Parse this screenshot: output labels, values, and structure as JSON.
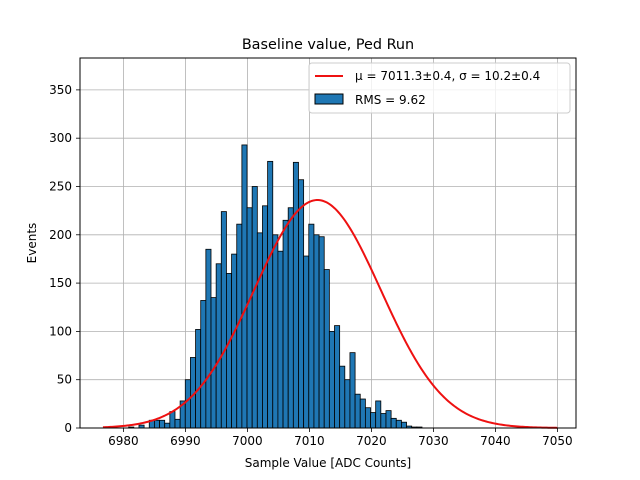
{
  "chart_data": {
    "type": "bar",
    "title": "Baseline value, Ped Run",
    "xlabel": "Sample Value [ADC Counts]",
    "ylabel": "Events",
    "xlim": [
      6973,
      7053
    ],
    "ylim": [
      0,
      383
    ],
    "grid": true,
    "legend_position": "top-right",
    "x_ticks": [
      6980,
      6990,
      7000,
      7010,
      7020,
      7030,
      7040,
      7050
    ],
    "x_tick_labels": [
      "6980",
      "6990",
      "7000",
      "7010",
      "7020",
      "7030",
      "7040",
      "7050"
    ],
    "y_ticks": [
      0,
      50,
      100,
      150,
      200,
      250,
      300,
      350
    ],
    "y_tick_labels": [
      "0",
      "50",
      "100",
      "150",
      "200",
      "250",
      "300",
      "350"
    ],
    "histogram": {
      "name": "RMS = 9.62",
      "bin_width": 0.83,
      "bin_start": 6976.7,
      "fill_color": "#1f77b4",
      "edge_color": "#000000",
      "values": [
        0,
        0,
        0,
        0,
        0,
        1,
        0,
        3,
        0,
        8,
        8,
        8,
        5,
        17,
        9,
        28,
        50,
        73,
        102,
        132,
        185,
        135,
        170,
        224,
        160,
        180,
        211,
        293,
        228,
        250,
        202,
        230,
        276,
        200,
        183,
        215,
        228,
        275,
        257,
        178,
        211,
        200,
        198,
        164,
        100,
        106,
        64,
        50,
        78,
        35,
        30,
        21,
        16,
        28,
        15,
        18,
        10,
        8,
        6,
        2,
        1,
        1,
        0,
        0,
        0,
        0,
        0,
        0,
        0,
        0,
        0,
        0,
        0,
        0,
        0,
        0,
        0,
        0,
        0,
        0,
        0,
        0,
        0,
        0,
        0,
        0,
        0,
        0,
        0
      ]
    },
    "fit": {
      "name_label": "μ = 7011.3±0.4, σ = 10.2±0.4",
      "mu": 7011.3,
      "sigma": 10.2,
      "amplitude": 236,
      "x_range": [
        6976.7,
        7050
      ],
      "color": "#ee1111"
    }
  }
}
